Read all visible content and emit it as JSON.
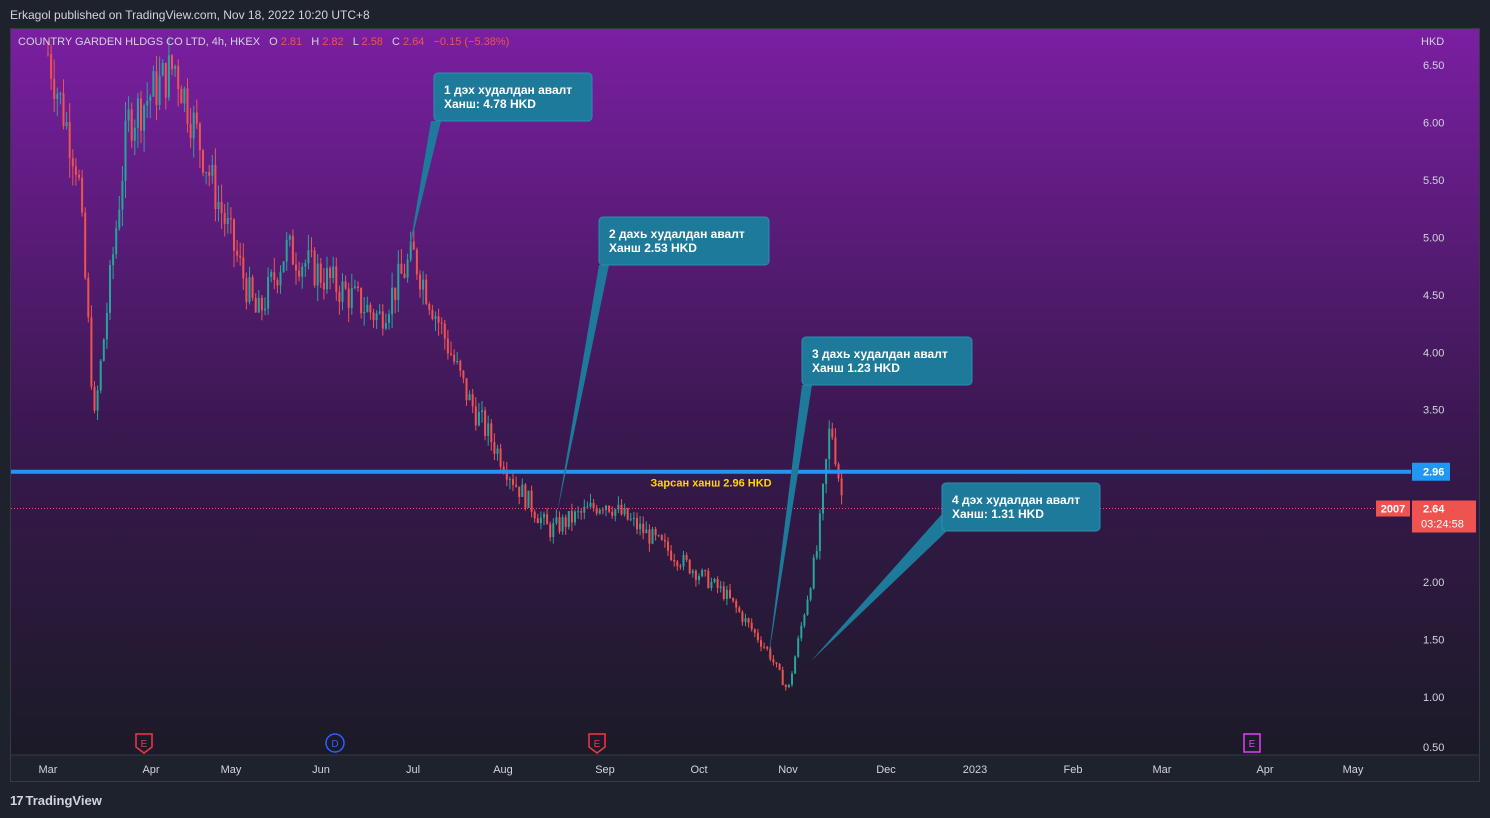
{
  "header": {
    "publisher_line": "Erkagol published on TradingView.com, Nov 18, 2022 10:20 UTC+8"
  },
  "footer": {
    "logo_mark": "17",
    "logo_text": "TradingView"
  },
  "legend": {
    "symbol": "COUNTRY GARDEN HLDGS CO LTD, 4h, HKEX",
    "o_label": "O",
    "o_value": "2.81",
    "h_label": "H",
    "h_value": "2.82",
    "l_label": "L",
    "l_value": "2.58",
    "c_label": "C",
    "c_value": "2.64",
    "change": "−0.15 (−5.38%)"
  },
  "colors": {
    "bg_top": "#7a1fa2",
    "bg_bottom": "#1b1a27",
    "up": "#26a69a",
    "down": "#ef5350",
    "level_line": "#2196f3",
    "callout": "#1e7a9a",
    "level_text": "#ffd600"
  },
  "annotations": {
    "c1": {
      "line1": "1 дэх худалдан авалт",
      "line2": "Ханш: 4.78 HKD"
    },
    "c2": {
      "line1": "2 дахь худалдан авалт",
      "line2": "Ханш 2.53 HKD"
    },
    "c3": {
      "line1": "3 дахь худалдан авалт",
      "line2": "Ханш 1.23 HKD"
    },
    "c4": {
      "line1": "4 дэх худалдан авалт",
      "line2": "Ханш: 1.31 HKD"
    },
    "level_label": "Зарсан ханш 2.96 HKD"
  },
  "price_tags": {
    "level": "2.96",
    "last": "2.64",
    "countdown": "03:24:58",
    "symbol_code": "2007"
  },
  "event_markers": [
    {
      "icon": "earnings-icon",
      "glyph": "E",
      "month": "Apr"
    },
    {
      "icon": "dividend-icon",
      "glyph": "D",
      "month": "Jun"
    },
    {
      "icon": "earnings-icon",
      "glyph": "E",
      "month": "Aug"
    },
    {
      "icon": "earnings-future-icon",
      "glyph": "E",
      "month": "Apr"
    }
  ],
  "chart_data": {
    "type": "candlestick",
    "currency_label": "HKD",
    "ylim": [
      0.5,
      6.75
    ],
    "y_ticks": [
      "6.50",
      "6.00",
      "5.50",
      "5.00",
      "4.50",
      "4.00",
      "3.50",
      "3.00",
      "2.50",
      "2.00",
      "1.50",
      "1.00",
      "0.50"
    ],
    "x_ticks": [
      "Mar",
      "Apr",
      "May",
      "Jun",
      "Jul",
      "Aug",
      "Sep",
      "Oct",
      "Nov",
      "Dec",
      "2023",
      "Feb",
      "Mar",
      "Apr",
      "May"
    ],
    "sell_level": 2.96,
    "last_price": 2.64,
    "approx_close_path": [
      {
        "date": "Mar 1",
        "close": 6.6
      },
      {
        "date": "Mar 10",
        "close": 5.6
      },
      {
        "date": "Mar 15",
        "close": 3.4
      },
      {
        "date": "Mar 25",
        "close": 6.0
      },
      {
        "date": "Apr 10",
        "close": 6.5
      },
      {
        "date": "Apr 25",
        "close": 5.4
      },
      {
        "date": "May 10",
        "close": 4.3
      },
      {
        "date": "May 20",
        "close": 4.9
      },
      {
        "date": "Jun 10",
        "close": 4.5
      },
      {
        "date": "Jun 20",
        "close": 4.3
      },
      {
        "date": "Jul 1",
        "close": 4.85
      },
      {
        "date": "Jul 20",
        "close": 3.6
      },
      {
        "date": "Aug 5",
        "close": 2.85
      },
      {
        "date": "Aug 15",
        "close": 2.45
      },
      {
        "date": "Sep 1",
        "close": 2.7
      },
      {
        "date": "Sep 20",
        "close": 2.3
      },
      {
        "date": "Oct 10",
        "close": 1.9
      },
      {
        "date": "Oct 25",
        "close": 1.4
      },
      {
        "date": "Nov 1",
        "close": 1.05
      },
      {
        "date": "Nov 10",
        "close": 2.3
      },
      {
        "date": "Nov 14",
        "close": 3.4
      },
      {
        "date": "Nov 18",
        "close": 2.64
      }
    ]
  }
}
